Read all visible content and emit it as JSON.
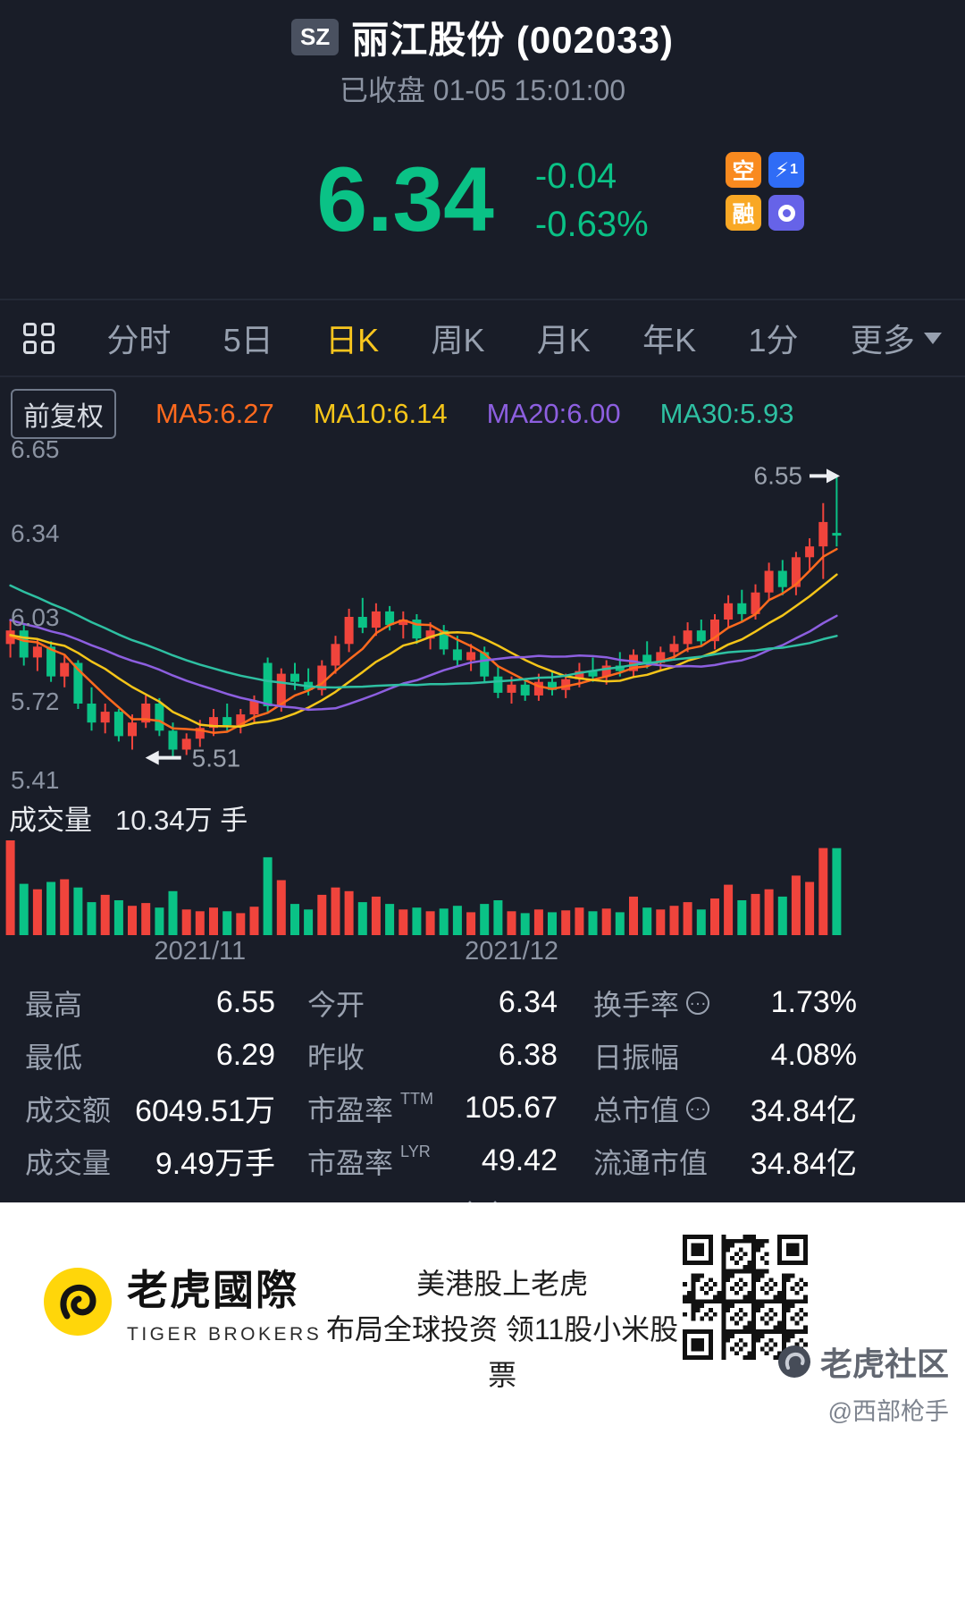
{
  "header": {
    "exchange_badge": "SZ",
    "title": "丽江股份 (002033)",
    "status": "已收盘 01-05 15:01:00"
  },
  "quote": {
    "price": "6.34",
    "change": "-0.04",
    "change_pct": "-0.63%",
    "badges": [
      {
        "label": "空",
        "color": "#f98a1f"
      },
      {
        "label": "1",
        "color": "#2f6cf6",
        "icon": "lightning"
      },
      {
        "label": "融",
        "color": "#f9a825"
      },
      {
        "label": "",
        "color": "#6663e8",
        "icon": "ring"
      }
    ]
  },
  "tabs": {
    "items": [
      {
        "label": "分时"
      },
      {
        "label": "5日"
      },
      {
        "label": "日K",
        "active": true
      },
      {
        "label": "周K"
      },
      {
        "label": "月K"
      },
      {
        "label": "年K"
      },
      {
        "label": "1分"
      },
      {
        "label": "更多"
      }
    ]
  },
  "chart_toolbar": {
    "adjust_label": "前复权"
  },
  "chart_data": {
    "type": "candlestick",
    "ylim": [
      5.37,
      6.69
    ],
    "y_axis_labels": [
      "6.65",
      "6.34",
      "6.03",
      "5.72",
      "5.41"
    ],
    "x_ticks": [
      {
        "label": "2021/11",
        "index": 14
      },
      {
        "label": "2021/12",
        "index": 37
      }
    ],
    "up_color": "#f0443c",
    "down_color": "#0ac286",
    "ma": [
      {
        "name": "MA5",
        "window": 5,
        "color": "#ff6a1e",
        "label": "MA5:6.27"
      },
      {
        "name": "MA10",
        "window": 10,
        "color": "#f5c519",
        "label": "MA10:6.14"
      },
      {
        "name": "MA20",
        "window": 20,
        "color": "#8d5fe0",
        "label": "MA20:6.00"
      },
      {
        "name": "MA30",
        "window": 30,
        "color": "#2ec0a2",
        "label": "MA30:5.93"
      }
    ],
    "annotations": [
      {
        "text": "6.55",
        "price": 6.55,
        "side": "right"
      },
      {
        "text": "5.51",
        "price": 5.51,
        "side": "left",
        "index": 13
      }
    ],
    "prior_closes": [
      6.62,
      6.58,
      6.54,
      6.5,
      6.46,
      6.42,
      6.38,
      6.34,
      6.3,
      6.26,
      6.22,
      6.18,
      6.15,
      6.12,
      6.1,
      6.08,
      6.06,
      6.04,
      6.02,
      6.0,
      5.99,
      5.98,
      5.97,
      5.96,
      5.96,
      5.97,
      5.96,
      5.95,
      5.94,
      5.96
    ],
    "candles": [
      [
        5.93,
        6.02,
        5.88,
        5.98
      ],
      [
        5.98,
        6.0,
        5.85,
        5.88
      ],
      [
        5.88,
        5.95,
        5.83,
        5.92
      ],
      [
        5.92,
        5.94,
        5.79,
        5.81
      ],
      [
        5.81,
        5.89,
        5.77,
        5.86
      ],
      [
        5.86,
        5.87,
        5.69,
        5.71
      ],
      [
        5.71,
        5.77,
        5.61,
        5.64
      ],
      [
        5.64,
        5.71,
        5.6,
        5.68
      ],
      [
        5.68,
        5.69,
        5.57,
        5.59
      ],
      [
        5.59,
        5.67,
        5.54,
        5.64
      ],
      [
        5.64,
        5.74,
        5.62,
        5.71
      ],
      [
        5.71,
        5.73,
        5.59,
        5.61
      ],
      [
        5.61,
        5.64,
        5.51,
        5.54
      ],
      [
        5.54,
        5.6,
        5.52,
        5.58
      ],
      [
        5.58,
        5.65,
        5.55,
        5.62
      ],
      [
        5.62,
        5.69,
        5.59,
        5.66
      ],
      [
        5.66,
        5.71,
        5.61,
        5.63
      ],
      [
        5.63,
        5.69,
        5.6,
        5.67
      ],
      [
        5.67,
        5.74,
        5.64,
        5.72
      ],
      [
        5.86,
        5.88,
        5.68,
        5.7
      ],
      [
        5.7,
        5.84,
        5.68,
        5.82
      ],
      [
        5.82,
        5.86,
        5.76,
        5.79
      ],
      [
        5.79,
        5.84,
        5.74,
        5.76
      ],
      [
        5.76,
        5.87,
        5.74,
        5.85
      ],
      [
        5.85,
        5.96,
        5.82,
        5.93
      ],
      [
        5.93,
        6.06,
        5.9,
        6.03
      ],
      [
        6.03,
        6.1,
        5.97,
        5.99
      ],
      [
        5.99,
        6.08,
        5.96,
        6.05
      ],
      [
        6.05,
        6.07,
        5.98,
        6.0
      ],
      [
        6.0,
        6.05,
        5.95,
        6.02
      ],
      [
        6.02,
        6.04,
        5.93,
        5.95
      ],
      [
        5.95,
        6.01,
        5.91,
        5.98
      ],
      [
        5.98,
        6.0,
        5.89,
        5.91
      ],
      [
        5.91,
        5.96,
        5.85,
        5.87
      ],
      [
        5.87,
        5.93,
        5.83,
        5.9
      ],
      [
        5.9,
        5.92,
        5.79,
        5.81
      ],
      [
        5.81,
        5.85,
        5.73,
        5.75
      ],
      [
        5.75,
        5.81,
        5.71,
        5.78
      ],
      [
        5.78,
        5.8,
        5.72,
        5.74
      ],
      [
        5.74,
        5.82,
        5.72,
        5.79
      ],
      [
        5.79,
        5.83,
        5.74,
        5.76
      ],
      [
        5.76,
        5.82,
        5.73,
        5.8
      ],
      [
        5.8,
        5.86,
        5.77,
        5.83
      ],
      [
        5.83,
        5.88,
        5.79,
        5.81
      ],
      [
        5.81,
        5.87,
        5.78,
        5.85
      ],
      [
        5.85,
        5.9,
        5.81,
        5.83
      ],
      [
        5.83,
        5.91,
        5.81,
        5.89
      ],
      [
        5.89,
        5.94,
        5.84,
        5.86
      ],
      [
        5.86,
        5.92,
        5.83,
        5.9
      ],
      [
        5.9,
        5.96,
        5.87,
        5.93
      ],
      [
        5.93,
        6.01,
        5.9,
        5.98
      ],
      [
        5.98,
        6.02,
        5.92,
        5.94
      ],
      [
        5.94,
        6.04,
        5.91,
        6.02
      ],
      [
        6.02,
        6.11,
        5.99,
        6.08
      ],
      [
        6.08,
        6.13,
        6.01,
        6.04
      ],
      [
        6.04,
        6.15,
        6.02,
        6.12
      ],
      [
        6.12,
        6.23,
        6.09,
        6.2
      ],
      [
        6.2,
        6.24,
        6.11,
        6.14
      ],
      [
        6.14,
        6.27,
        6.11,
        6.25
      ],
      [
        6.25,
        6.32,
        6.2,
        6.29
      ],
      [
        6.29,
        6.45,
        6.17,
        6.38
      ],
      [
        6.34,
        6.55,
        6.29,
        6.34
      ]
    ],
    "volumes": [
      10.34,
      5.6,
      5.0,
      5.8,
      6.1,
      5.2,
      3.6,
      4.4,
      3.8,
      3.2,
      3.5,
      3.0,
      4.8,
      2.8,
      2.6,
      3.0,
      2.6,
      2.4,
      3.1,
      8.5,
      6.0,
      3.4,
      2.8,
      4.4,
      5.2,
      4.8,
      3.6,
      4.2,
      3.4,
      2.8,
      3.0,
      2.6,
      2.9,
      3.2,
      2.5,
      3.4,
      3.8,
      2.6,
      2.4,
      2.8,
      2.5,
      2.7,
      3.0,
      2.6,
      2.9,
      2.5,
      4.2,
      3.0,
      2.8,
      3.2,
      3.6,
      2.8,
      4.0,
      5.5,
      3.8,
      4.5,
      5.0,
      4.2,
      6.5,
      5.8,
      9.5,
      9.49
    ]
  },
  "volume_pane": {
    "label": "成交量",
    "value": "10.34万 手"
  },
  "stats": {
    "rows": [
      [
        {
          "label": "最高",
          "value": "6.55"
        },
        {
          "label": "今开",
          "value": "6.34"
        },
        {
          "label": "换手率",
          "value": "1.73%",
          "info": true
        }
      ],
      [
        {
          "label": "最低",
          "value": "6.29"
        },
        {
          "label": "昨收",
          "value": "6.38"
        },
        {
          "label": "日振幅",
          "value": "4.08%"
        }
      ],
      [
        {
          "label": "成交额",
          "value": "6049.51万"
        },
        {
          "label": "市盈率",
          "sup": "TTM",
          "value": "105.67"
        },
        {
          "label": "总市值",
          "value": "34.84亿",
          "info": true
        }
      ],
      [
        {
          "label": "成交量",
          "value": "9.49万手"
        },
        {
          "label": "市盈率",
          "sup": "LYR",
          "value": "49.42"
        },
        {
          "label": "流通市值",
          "value": "34.84亿"
        }
      ]
    ]
  },
  "footer": {
    "brand_cn": "老虎國際",
    "brand_en": "TIGER BROKERS",
    "promo_line1": "美港股上老虎",
    "promo_line2": "布局全球投资 领11股小米股票"
  },
  "watermark": {
    "brand": "老虎社区",
    "user": "@西部枪手"
  }
}
